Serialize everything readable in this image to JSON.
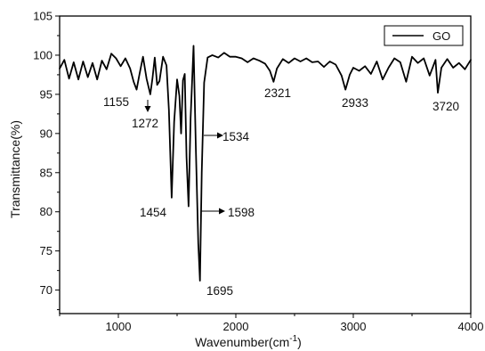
{
  "chart_data": {
    "type": "line",
    "title": "",
    "xlabel": "Wavenumber(cm",
    "xlabel_sup": "-1",
    "xlabel_suffix": ")",
    "ylabel": "Transmittance(%)",
    "xlim": [
      500,
      4000
    ],
    "ylim": [
      67,
      105
    ],
    "xticks": [
      1000,
      2000,
      3000,
      4000
    ],
    "xtick_labels": [
      "1000",
      "2000",
      "3000",
      "4000"
    ],
    "yticks": [
      70,
      75,
      80,
      85,
      90,
      95,
      100,
      105
    ],
    "ytick_labels": [
      "70",
      "75",
      "80",
      "85",
      "90",
      "95",
      "100",
      "105"
    ],
    "grid": false,
    "legend_position": "top-right",
    "series": [
      {
        "name": "GO",
        "color": "#000000",
        "x": [
          500,
          540,
          580,
          620,
          660,
          700,
          740,
          780,
          820,
          860,
          900,
          940,
          980,
          1020,
          1060,
          1100,
          1130,
          1155,
          1180,
          1210,
          1240,
          1272,
          1290,
          1310,
          1330,
          1350,
          1380,
          1410,
          1430,
          1454,
          1475,
          1500,
          1520,
          1534,
          1550,
          1565,
          1580,
          1598,
          1615,
          1640,
          1660,
          1680,
          1695,
          1710,
          1730,
          1760,
          1800,
          1850,
          1900,
          1950,
          2000,
          2050,
          2100,
          2150,
          2200,
          2250,
          2290,
          2321,
          2350,
          2400,
          2450,
          2500,
          2550,
          2600,
          2650,
          2700,
          2750,
          2800,
          2850,
          2900,
          2933,
          2970,
          3000,
          3050,
          3100,
          3150,
          3200,
          3250,
          3300,
          3350,
          3400,
          3450,
          3500,
          3550,
          3600,
          3650,
          3700,
          3720,
          3750,
          3800,
          3850,
          3900,
          3950,
          4000
        ],
        "values": [
          98.3,
          99.4,
          97.0,
          99.1,
          96.9,
          99.2,
          97.2,
          99.0,
          96.9,
          99.3,
          98.2,
          100.2,
          99.6,
          98.6,
          99.6,
          98.3,
          96.6,
          95.6,
          97.6,
          99.8,
          97.0,
          95.0,
          97.0,
          99.7,
          96.2,
          96.7,
          99.8,
          98.7,
          93.0,
          81.8,
          91.5,
          96.9,
          94.8,
          90.0,
          96.8,
          97.6,
          87.0,
          80.7,
          92.0,
          101.2,
          88.0,
          76.0,
          71.2,
          85.0,
          96.5,
          99.7,
          100.0,
          99.7,
          100.3,
          99.8,
          99.8,
          99.6,
          99.1,
          99.6,
          99.3,
          98.9,
          98.0,
          96.6,
          98.3,
          99.5,
          99.0,
          99.6,
          99.2,
          99.6,
          99.1,
          99.2,
          98.5,
          99.2,
          98.8,
          97.4,
          95.6,
          97.5,
          98.4,
          98.0,
          98.6,
          97.6,
          99.2,
          96.9,
          98.4,
          99.6,
          99.1,
          96.6,
          99.8,
          99.0,
          99.6,
          97.4,
          99.4,
          95.2,
          98.4,
          99.5,
          98.4,
          99.0,
          98.2,
          99.4
        ]
      }
    ],
    "annotations": [
      {
        "label": "1155",
        "x": 1155,
        "arrow": false
      },
      {
        "label": "1272",
        "x": 1272,
        "arrow": "down"
      },
      {
        "label": "1534",
        "x": 1534,
        "arrow": "right"
      },
      {
        "label": "1454",
        "x": 1454,
        "arrow": false
      },
      {
        "label": "1598",
        "x": 1598,
        "arrow": "right"
      },
      {
        "label": "1695",
        "x": 1695,
        "arrow": false
      },
      {
        "label": "2321",
        "x": 2321,
        "arrow": false
      },
      {
        "label": "2933",
        "x": 2933,
        "arrow": false
      },
      {
        "label": "3720",
        "x": 3720,
        "arrow": false
      }
    ]
  }
}
